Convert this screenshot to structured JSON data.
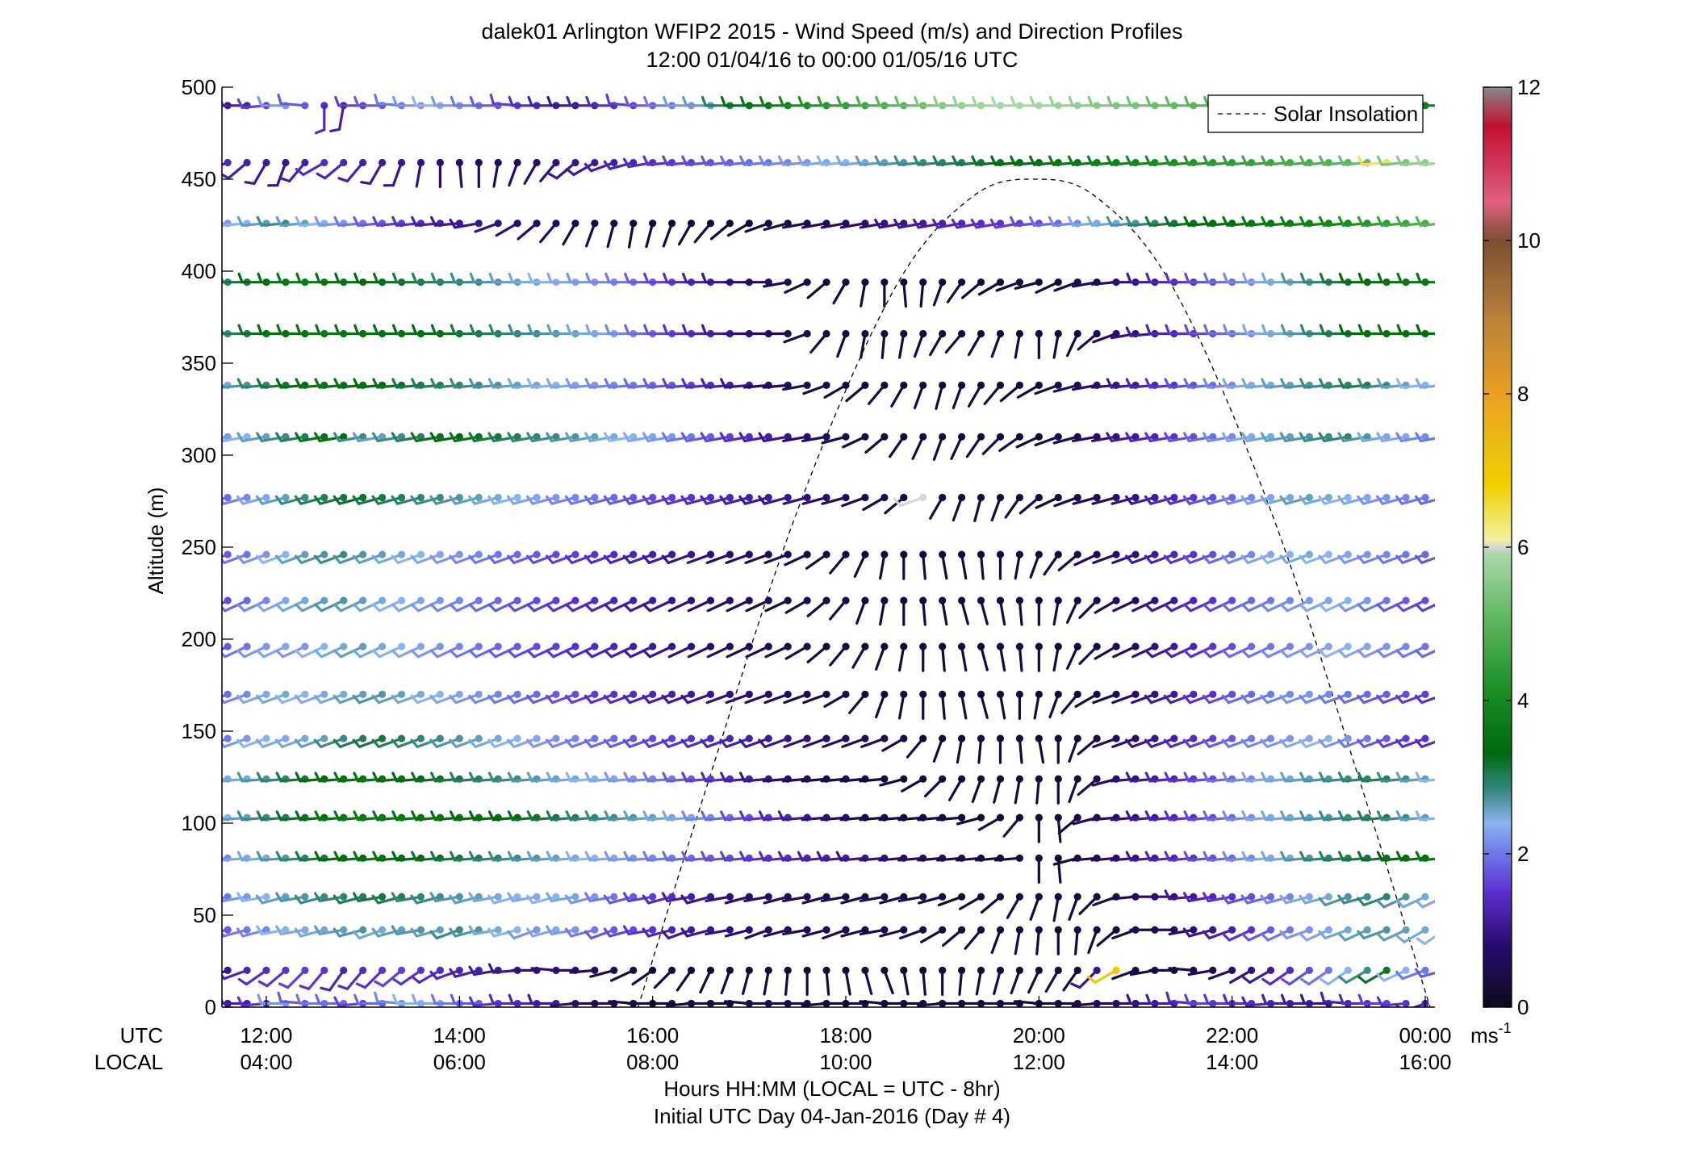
{
  "chart_data": {
    "type": "wind_barb_profile",
    "title": "dalek01 Arlington WFIP2 2015 - Wind Speed (m/s) and Direction Profiles",
    "subtitle": "12:00 01/04/16 to 00:00 01/05/16  UTC",
    "ylabel": "Altitude (m)",
    "ylim": [
      0,
      500
    ],
    "yticks": [
      0,
      50,
      100,
      150,
      200,
      250,
      300,
      350,
      400,
      450,
      500
    ],
    "xlim_hours_utc": [
      11.6,
      24.2
    ],
    "x_axis_rows": {
      "utc_row_label": "UTC",
      "local_row_label": "LOCAL",
      "utc_ticks": [
        {
          "hour": 12,
          "label": "12:00"
        },
        {
          "hour": 14,
          "label": "14:00"
        },
        {
          "hour": 16,
          "label": "16:00"
        },
        {
          "hour": 18,
          "label": "18:00"
        },
        {
          "hour": 20,
          "label": "20:00"
        },
        {
          "hour": 22,
          "label": "22:00"
        },
        {
          "hour": 24,
          "label": "00:00"
        }
      ],
      "local_ticks": [
        {
          "hour": 12,
          "label": "04:00"
        },
        {
          "hour": 14,
          "label": "06:00"
        },
        {
          "hour": 16,
          "label": "08:00"
        },
        {
          "hour": 18,
          "label": "10:00"
        },
        {
          "hour": 20,
          "label": "12:00"
        },
        {
          "hour": 22,
          "label": "14:00"
        },
        {
          "hour": 24,
          "label": "16:00"
        }
      ]
    },
    "xlabel_line1": "Hours HH:MM  (LOCAL = UTC - 8hr)",
    "xlabel_line2": "Initial UTC Day 04-Jan-2016 (Day # 4)",
    "legend": {
      "entries": [
        "Solar Insolation"
      ],
      "location": "top-right"
    },
    "colorbar": {
      "min": 0,
      "max": 12,
      "ticks": [
        0,
        2,
        4,
        6,
        8,
        10,
        12
      ],
      "unit_label": "ms",
      "unit_exponent": "-1",
      "color_stops": [
        {
          "v": 0.0,
          "c": "#0a0a1e"
        },
        {
          "v": 0.8,
          "c": "#2a0a6e"
        },
        {
          "v": 1.5,
          "c": "#5a30d0"
        },
        {
          "v": 2.0,
          "c": "#6e78e8"
        },
        {
          "v": 2.4,
          "c": "#8ab4f0"
        },
        {
          "v": 2.8,
          "c": "#3a8a8a"
        },
        {
          "v": 3.3,
          "c": "#006a10"
        },
        {
          "v": 4.0,
          "c": "#118a1e"
        },
        {
          "v": 5.0,
          "c": "#5ab45a"
        },
        {
          "v": 5.9,
          "c": "#a8d8a8"
        },
        {
          "v": 6.0,
          "c": "#d6d6d6"
        },
        {
          "v": 6.1,
          "c": "#f4f0a0"
        },
        {
          "v": 6.8,
          "c": "#f0d000"
        },
        {
          "v": 8.0,
          "c": "#e8a020"
        },
        {
          "v": 9.0,
          "c": "#b8803a"
        },
        {
          "v": 10.0,
          "c": "#7a5030"
        },
        {
          "v": 10.5,
          "c": "#e06080"
        },
        {
          "v": 11.5,
          "c": "#c01030"
        },
        {
          "v": 12.0,
          "c": "#8a8a8a"
        }
      ]
    },
    "solar_insolation_curve": {
      "style": "dashed",
      "color": "#000000",
      "points_hour_alt": [
        [
          15.85,
          0
        ],
        [
          16.5,
          110
        ],
        [
          17.5,
          270
        ],
        [
          18.5,
          390
        ],
        [
          19.3,
          440
        ],
        [
          19.95,
          450
        ],
        [
          20.6,
          440
        ],
        [
          21.4,
          390
        ],
        [
          22.4,
          270
        ],
        [
          23.4,
          110
        ],
        [
          24.05,
          0
        ]
      ]
    },
    "wind_grid": {
      "altitudes_m": [
        2,
        20,
        42,
        60,
        81,
        103,
        124,
        146,
        170,
        196,
        221,
        246,
        277,
        310,
        338,
        366,
        394,
        426,
        459,
        490
      ],
      "times_hours_utc": [
        11.6,
        11.8,
        12.0,
        12.2,
        12.4,
        12.6,
        12.8,
        13.0,
        13.2,
        13.4,
        13.6,
        13.8,
        14.0,
        14.2,
        14.4,
        14.6,
        14.8,
        15.0,
        15.2,
        15.4,
        15.6,
        15.8,
        16.0,
        16.2,
        16.4,
        16.6,
        16.8,
        17.0,
        17.2,
        17.4,
        17.6,
        17.8,
        18.0,
        18.2,
        18.4,
        18.6,
        18.8,
        19.0,
        19.2,
        19.4,
        19.6,
        19.8,
        20.0,
        20.2,
        20.4,
        20.6,
        20.8,
        21.0,
        21.2,
        21.4,
        21.6,
        21.8,
        22.0,
        22.2,
        22.4,
        22.6,
        22.8,
        23.0,
        23.2,
        23.4,
        23.6,
        23.8,
        24.0,
        24.2
      ],
      "encoding": "each cell 'SS.D:DDD' = speed m/s : direction deg (meteorological, from)",
      "rows": [
        "1.0:270 1.2:270 1.5:265 2.2:270 1.8:275 2.0:270 1.9:270 1.6:265 1.9:270 2.1:275 2.4:270 2.3:270 2.0:270 1.8:270 1.5:265 1.4:270 1.3:270 1.1:270 0.9:265 0.6:270 0.5:270 0.4:275 0.3:270 0.3:270 0.3:265 0.4:270 0.3:270 0.3:275 0.4:270 0.5:270 0.4:270 0.3:265 0.3:270 0.4:270 0.3:275 0.3:270 0.3:270 0.4:265 0.3:270 0.3:270 0.3:270 0.4:270 0.3:275 0.3:270 0.4:270 0.5:265 0.6:270 0.8:270 1.0:270 1.2:270 1.4:275 1.6:270 1.5:270 1.4:270 1.3:265 1.2:270 1.1:270 1.0:270 1.2:275 1.4:270 1.6:270 1.5:265 1.3:250 1.7:240",
        "1.0:250 1.3:250 1.4:235 1.5:230 1.6:225 1.5:220 1.3:215 1.4:220 1.5:225 1.6:230 1.5:235 1.4:240 1.3:250 1.2:255 1.1:260 1.0:265 0.9:270 0.9:275 0.8:270 0.6:265 0.5:255 0.4:245 0.3:235 0.3:225 0.3:215 0.3:205 0.3:200 0.3:195 0.3:190 0.3:185 0.3:180 0.3:175 0.3:170 0.4:165 0.3:160 0.3:170 0.3:175 0.3:180 0.3:185 0.3:190 0.4:195 0.3:200 0.3:205 0.4:210 0.3:215 1.0:225 7.0:240 0.4:250 0.4:260 0.3:270 0.4:275 0.5:260 0.7:250 0.9:240 1.1:240 1.4:235 1.7:235 2.0:235 2.4:235 2.8:240 3.2:240 2.4:245 2.0:250 1.8:255",
        "1.8:260 2.0:255 2.1:255 2.4:260 2.3:260 2.5:255 2.6:260 2.7:255 2.5:250 2.6:255 2.7:260 2.6:255 2.8:250 2.7:255 2.5:260 2.4:255 2.2:250 2.3:255 2.2:260 2.0:255 1.8:250 1.7:255 1.5:260 1.3:255 1.1:250 1.0:255 0.9:260 0.8:255 0.7:250 0.6:255 0.5:260 0.5:255 0.5:250 0.4:255 0.4:260 0.4:255 0.4:250 0.3:240 0.3:230 0.3:220 0.3:200 0.3:190 0.3:185 0.3:180 0.3:185 0.3:200 0.3:230 0.4:250 0.5:270 0.6:270 0.8:260 1.0:255 1.2:250 1.5:245 1.8:245 2.0:245 2.2:250 2.3:245 2.5:250 2.6:245 2.7:250 2.6:245 2.5:240 2.4:235",
        "2.0:255 2.2:260 2.4:260 2.6:255 2.7:260 2.8:255 2.9:260 3.0:255 3.1:260 3.0:255 2.9:260 2.8:255 2.7:260 2.6:255 2.5:260 2.4:255 2.3:260 2.4:255 2.5:260 2.2:255 2.0:260 1.8:255 1.6:260 1.4:255 1.2:260 1.0:255 0.9:260 0.8:255 0.7:260 0.6:255 0.5:260 0.5:255 0.4:260 0.4:255 0.4:260 0.4:255 0.4:260 0.4:255 0.3:250 0.3:240 0.3:230 0.3:210 0.3:200 0.3:190 0.3:200 0.3:225 0.4:250 0.5:265 0.7:270 0.9:270 1.1:265 1.3:260 1.5:260 1.7:255 1.9:255 2.1:255 2.3:255 2.5:255 2.7:250 2.8:255 2.9:250 2.7:245 2.5:245 2.3:245",
        "2.1:265 2.3:265 2.5:265 2.7:265 2.9:265 3.1:265 3.3:265 3.4:265 3.5:265 3.4:265 3.3:265 3.2:265 3.1:265 3.0:265 2.9:265 2.8:265 2.7:265 2.6:265 2.5:265 2.4:265 2.3:265 2.2:265 2.1:265 2.0:265 1.9:265 1.8:265 1.7:265 1.6:265 1.5:265 1.4:265 1.3:265 1.2:265 1.1:265 1.0:265 0.9:265 0.8:265 0.7:265 0.6:265 0.5:265 0.4:265 0.4:265 0.3:265 0.3:180 0.3:175 0.3:255 0.5:265 0.7:265 0.9:265 1.1:265 1.3:265 1.5:265 1.7:265 1.9:265 2.1:265 2.3:265 2.5:265 2.7:265 2.9:265 3.0:265 3.1:265 3.2:265 3.3:265 3.4:265 3.5:265",
        "2.4:265 2.6:265 2.8:265 3.0:265 3.2:265 3.4:265 3.5:265 3.6:265 3.6:265 3.6:265 3.5:265 3.5:265 3.4:265 3.4:265 3.3:265 3.3:265 3.2:265 3.1:265 3.0:265 2.9:265 2.8:265 2.7:265 2.6:265 2.5:265 2.3:265 2.1:265 1.9:265 1.7:265 1.5:265 1.3:265 1.1:265 0.9:265 0.7:265 0.5:265 0.4:265 0.3:265 0.3:265 0.3:265 0.3:265 0.3:255 0.3:240 0.3:220 0.3:180 0.3:175 0.3:230 0.5:255 0.7:265 0.9:265 1.1:265 1.3:265 1.5:265 1.7:265 1.9:265 2.1:265 2.3:265 2.5:265 2.6:265 2.7:265 2.8:265 2.9:265 3.0:265 2.8:265 2.6:265 2.4:265",
        "2.3:265 2.5:265 2.7:265 2.9:265 3.1:265 3.3:265 3.4:265 3.5:265 3.5:265 3.4:265 3.3:265 3.2:265 3.1:265 3.0:265 2.9:265 2.8:265 2.7:265 2.6:265 2.5:265 2.4:265 2.3:265 2.2:265 2.1:265 2.0:265 1.8:265 1.6:265 1.4:265 1.2:265 1.0:265 0.8:265 0.6:265 0.5:265 0.4:265 0.4:265 0.3:265 0.3:255 0.3:240 0.3:225 0.3:210 0.3:200 0.3:195 0.3:190 0.3:185 0.3:180 0.3:200 0.5:230 0.7:255 0.9:265 1.1:265 1.3:265 1.5:265 1.7:265 1.9:265 2.1:265 2.3:265 2.5:265 2.6:265 2.7:265 2.8:265 2.9:265 3.0:265 2.8:265 2.6:265 2.4:265",
        "2.0:250 2.2:250 2.4:250 2.3:250 2.5:250 2.6:250 2.8:250 3.0:250 3.1:250 3.0:250 2.9:250 2.8:250 2.7:250 2.6:250 2.5:250 2.4:250 2.3:250 2.2:250 2.1:250 2.0:250 1.9:250 1.8:250 1.7:250 1.6:250 1.5:250 1.4:250 1.3:250 1.2:250 1.1:250 1.0:250 0.9:250 0.8:250 0.7:250 0.6:250 0.5:250 0.4:240 0.3:220 0.3:200 0.3:190 0.3:185 0.3:180 0.3:175 0.3:170 0.3:180 0.3:200 0.4:230 0.6:250 0.8:250 1.0:250 1.2:250 1.4:250 1.6:250 1.8:250 2.0:250 2.1:250 2.2:250 2.3:250 2.4:250 2.2:250 2.0:250 1.8:250 1.6:250 1.5:250 1.4:250",
        "1.9:250 2.1:250 2.3:250 2.5:250 2.4:250 2.3:250 2.5:250 2.6:250 2.7:250 2.6:250 2.5:250 2.4:250 2.3:250 2.2:250 2.1:250 2.0:250 1.9:250 1.8:250 1.7:250 1.6:250 1.5:250 1.4:250 1.3:250 1.2:250 1.1:250 1.0:250 0.9:250 0.8:250 0.7:250 0.6:250 0.5:250 0.4:250 0.4:240 0.3:220 0.3:200 0.3:190 0.3:180 0.3:175 0.3:170 0.3:165 0.3:170 0.3:180 0.3:190 0.3:200 0.3:220 0.4:240 0.5:250 0.7:250 0.9:250 1.1:250 1.3:250 1.5:250 1.7:250 1.9:250 2.0:250 2.1:250 2.2:250 2.1:250 2.0:250 1.9:250 1.8:250 1.7:250 1.6:250 1.5:250",
        "1.8:245 2.0:245 2.2:245 2.3:245 2.2:245 2.4:245 2.5:245 2.6:245 2.5:245 2.4:245 2.3:245 2.2:245 2.1:245 2.0:245 1.9:245 1.8:245 1.7:245 1.6:245 1.5:245 1.4:245 1.3:245 1.2:245 1.1:245 1.0:245 0.9:245 0.8:245 0.7:245 0.6:245 0.5:245 0.4:245 0.4:240 0.3:230 0.3:220 0.3:210 0.3:200 0.3:190 0.3:180 0.3:175 0.3:170 0.3:165 0.3:170 0.3:175 0.3:180 0.3:190 0.3:205 0.4:225 0.5:240 0.7:245 0.9:245 1.1:245 1.3:245 1.5:245 1.7:245 1.9:245 2.0:245 2.1:245 2.2:245 2.3:245 2.4:245 2.3:245 2.2:245 2.1:245 2.0:245 1.9:245",
        "1.7:245 1.9:245 2.1:245 2.3:245 2.5:245 2.6:245 2.7:245 2.6:245 2.5:245 2.4:245 2.3:245 2.2:245 2.1:245 2.0:245 1.9:245 1.8:245 1.7:245 1.6:245 1.5:245 1.4:245 1.3:245 1.2:245 1.1:245 1.0:245 0.9:245 0.8:245 0.7:245 0.6:245 0.5:245 0.4:245 0.4:240 0.3:230 0.3:220 0.3:200 0.3:190 0.3:180 0.3:175 0.3:170 0.3:165 0.3:165 0.3:170 0.3:175 0.3:180 0.3:190 0.3:205 0.4:225 0.5:240 0.7:245 0.9:245 1.1:245 1.3:245 1.5:245 1.7:245 1.9:245 2.0:245 2.1:245 2.2:245 2.3:245 2.4:245 2.2:245 2.0:245 1.8:245 1.7:245 1.6:245",
        "1.8:250 2.0:250 2.2:250 2.4:250 2.6:250 2.7:250 2.8:250 2.7:250 2.6:250 2.5:250 2.4:250 2.3:250 2.2:250 2.1:250 2.0:250 1.9:250 1.8:250 1.7:250 1.6:250 1.5:250 1.4:250 1.3:250 1.2:250 1.1:250 1.0:250 0.9:250 0.8:250 0.7:250 0.6:250 0.5:250 0.4:245 0.3:235 0.3:220 0.3:205 0.3:190 0.3:180 0.3:175 0.3:170 0.3:170 0.3:175 0.3:180 0.3:190 0.3:200 0.3:215 0.4:230 0.5:245 0.7:250 0.9:250 1.1:250 1.3:250 1.5:250 1.7:250 1.9:250 2.1:250 2.3:250 2.4:250 2.5:250 2.4:250 2.3:250 2.2:250 2.1:250 2.0:250 1.9:250 1.8:250",
        "1.9:255 2.1:255 2.3:255 2.6:255 2.8:255 3.0:255 3.1:255 3.2:255 3.1:255 3.0:255 2.9:255 2.8:255 2.7:255 2.6:255 2.5:255 2.4:255 2.3:255 2.2:255 2.1:255 2.0:255 1.9:255 1.8:255 1.7:255 1.6:255 1.5:255 1.4:255 1.3:255 1.2:255 1.1:255 1.0:255 0.9:255 0.8:255 0.6:255 0.5:250 0.4:240 0.3:230 6.0:250 0.3:210 0.3:200 0.3:195 0.3:200 0.3:215 0.3:230 0.3:245 0.4:250 0.5:255 0.7:255 0.9:255 1.1:255 1.3:255 1.5:255 1.7:255 1.9:255 2.1:255 2.3:255 2.5:255 2.6:255 2.5:255 2.4:255 2.3:255 2.2:255 2.1:255 2.0:255 1.9:255",
        "2.2:260 2.4:260 2.6:260 2.8:260 3.0:260 3.2:260 3.4:260 2.8:260 2.6:260 2.8:260 3.0:260 3.2:260 3.3:260 3.2:260 3.1:260 3.0:260 2.9:260 2.8:260 2.7:260 2.6:260 2.5:260 2.4:260 2.3:260 2.2:260 2.0:260 1.8:260 1.6:260 1.4:260 1.2:260 1.0:260 0.8:260 0.6:260 0.5:255 0.4:245 0.3:230 0.3:215 0.3:205 0.3:200 0.3:205 0.3:215 0.3:225 0.3:235 0.3:245 0.4:250 0.5:255 0.7:260 0.9:260 1.1:260 1.3:260 1.5:260 1.7:260 1.9:260 2.1:260 2.3:260 2.5:260 2.6:260 2.7:260 2.8:260 2.9:260 2.7:260 2.5:260 2.3:260 2.1:260 2.0:260",
        "2.5:265 2.7:265 2.9:265 3.1:265 3.3:265 3.5:265 3.5:265 3.4:265 3.3:265 3.2:265 3.1:265 3.0:265 2.9:265 2.8:265 2.7:265 2.6:265 2.5:265 2.4:265 2.3:265 2.2:265 2.1:265 2.0:265 1.9:265 1.8:265 1.6:265 1.4:265 1.2:265 1.0:265 0.8:265 0.6:265 0.5:260 0.4:250 0.3:240 0.3:230 0.3:220 0.3:210 0.3:200 0.3:195 0.3:200 0.3:210 0.3:220 0.3:230 0.3:240 0.4:250 0.5:255 0.7:260 0.9:265 1.1:265 1.3:265 1.5:265 1.7:265 1.9:265 2.1:265 2.3:265 2.5:265 2.6:265 2.7:265 2.8:265 2.9:265 3.0:265 2.8:265 2.6:265 2.4:265 2.3:265",
        "2.8:270 3.0:270 3.2:270 3.4:270 3.5:270 3.6:270 3.6:270 3.5:270 3.5:270 3.4:270 3.4:270 3.3:270 3.2:270 3.1:270 3.0:270 2.9:270 2.8:270 2.7:270 2.6:270 2.5:270 2.3:270 2.1:270 1.9:270 1.7:270 1.5:270 1.3:270 1.1:270 0.9:270 0.7:270 0.5:270 0.4:250 0.3:220 0.3:200 0.3:190 0.3:185 0.3:190 0.3:200 0.3:210 0.3:220 0.3:210 0.3:200 0.3:190 0.3:180 0.3:190 0.3:205 0.5:230 0.7:250 0.9:260 1.1:265 1.3:270 1.5:270 1.7:270 1.9:270 2.1:270 2.3:270 2.5:270 2.7:270 2.9:270 3.1:270 3.3:270 3.5:270 3.5:270 3.4:270 3.3:270",
        "2.9:270 3.1:270 3.3:270 3.5:270 3.6:270 3.6:270 3.5:270 3.4:270 3.3:270 3.2:270 3.1:270 3.0:270 2.9:270 2.8:270 2.7:270 2.6:270 2.5:270 2.4:270 2.3:270 2.2:270 2.1:270 2.0:270 1.8:270 1.6:270 1.4:270 1.2:270 1.0:270 0.8:270 0.6:270 0.5:260 0.4:245 0.3:230 0.3:210 0.3:190 0.3:180 0.3:175 0.3:185 0.3:200 0.3:215 0.3:230 0.3:240 0.3:250 0.3:255 0.3:245 0.4:250 0.5:260 0.7:265 0.9:270 1.1:270 1.3:270 1.5:270 1.7:270 1.9:270 2.1:270 2.3:270 2.5:270 2.7:270 2.9:270 3.1:270 3.3:270 3.4:270 3.5:270 3.6:270 3.5:270",
        "2.2:265 2.4:265 2.6:265 2.8:265 2.6:265 2.4:265 2.2:265 2.0:265 1.8:265 1.6:265 1.4:265 1.2:265 1.1:265 1.0:260 0.9:250 0.8:240 0.7:230 0.6:220 0.5:210 0.4:200 0.4:195 0.3:190 0.3:195 0.3:200 0.3:210 0.3:220 0.3:230 0.3:240 0.3:250 0.4:255 0.5:260 0.6:260 0.7:260 0.8:260 0.9:260 1.0:260 1.1:260 1.2:260 1.3:260 1.4:260 1.5:260 1.6:260 1.7:265 1.9:265 2.1:265 2.3:265 2.5:265 2.7:265 2.9:265 3.1:265 3.2:265 3.3:265 3.4:265 3.5:265 3.6:265 3.7:265 3.8:265 3.9:265 4.0:265 4.2:265 4.4:265 4.6:265 4.8:265 5.0:265",
        "1.3:250 1.2:230 1.1:210 1.0:200 1.2:220 1.4:240 1.3:230 1.2:220 1.1:210 1.0:200 0.9:190 0.8:180 0.7:175 0.6:180 0.6:190 0.7:200 0.8:210 0.9:220 1.0:230 1.1:240 1.2:250 1.3:255 1.4:260 1.5:265 1.6:265 1.7:265 1.8:265 1.9:265 2.0:265 2.1:265 2.2:265 2.3:265 2.4:265 2.5:265 2.6:265 2.7:265 2.8:265 2.9:265 3.0:265 3.1:265 3.2:265 3.3:265 3.4:265 3.5:265 3.6:265 3.7:265 3.8:265 3.9:265 4.0:265 4.1:265 4.2:265 4.3:265 4.4:265 4.5:265 4.6:265 4.7:265 4.8:265 4.9:265 5.0:265 5.2:265 6.4:265 5.4:265 5.6:265 5.8:265",
        "1.0:270 1.2:270 1.6:265 2.2:270 1.8:275 1.4:180 1.2:190 1.6:270 1.8:270 2.0:275 2.2:270 2.4:270 2.2:270 2.0:270 1.8:270 1.6:275 1.4:270 1.2:270 1.0:270 1.2:270 1.4:270 1.6:275 1.8:270 2.0:270 2.2:270 2.6:270 3.0:270 3.4:270 3.6:270 3.8:270 4.0:270 4.2:270 4.4:270 4.6:270 4.8:270 5.0:270 5.2:270 5.4:270 5.6:270 5.7:270 5.8:270 5.9:270 5.9:270 5.8:270 5.7:270 5.6:270 5.5:270 5.4:270 5.3:270 5.2:270 5.1:270 5.0:270 4.9:270 4.8:270 4.7:270 4.6:270 4.5:270 4.4:270 4.3:270 4.2:270 4.1:270 4.0:270 3.9:270 3.8:270"
      ]
    }
  },
  "colors": {
    "axis": "#000000",
    "background": "#ffffff"
  }
}
